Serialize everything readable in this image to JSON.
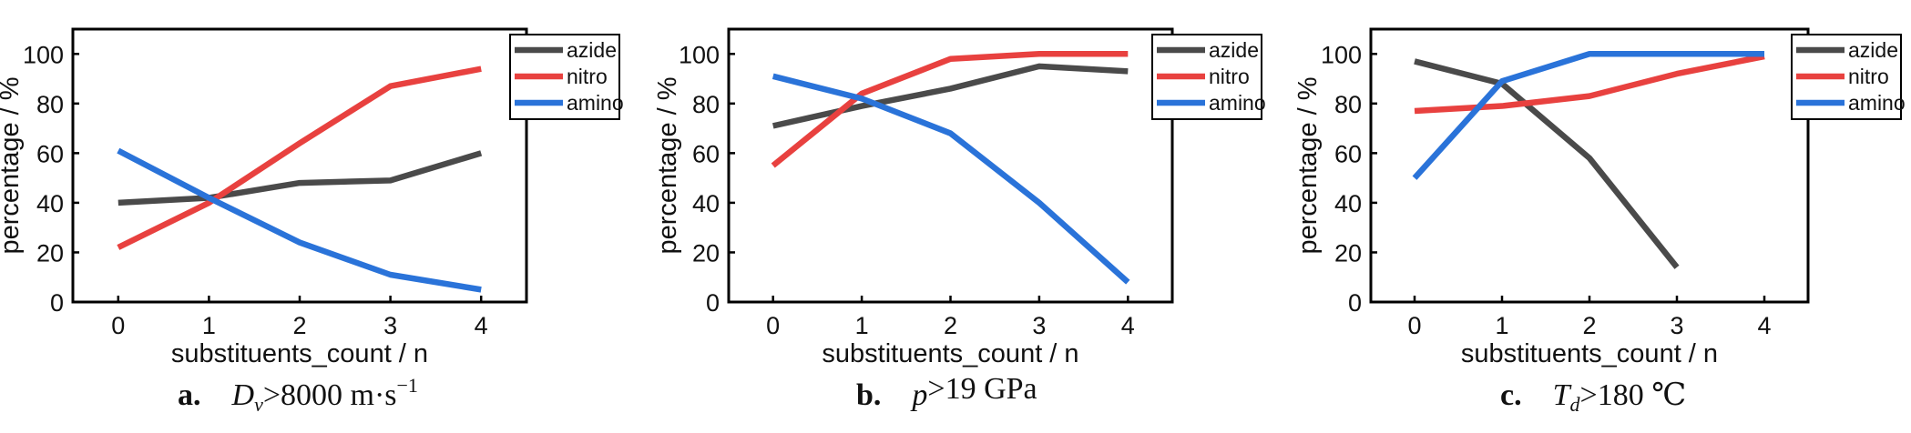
{
  "chart_data": [
    {
      "type": "line",
      "xlabel": "substituents_count / n",
      "ylabel": "percentage / %",
      "x": [
        0,
        1,
        2,
        3,
        4
      ],
      "xticks": [
        "0",
        "1",
        "2",
        "3",
        "4"
      ],
      "yticks": [
        "0",
        "20",
        "40",
        "60",
        "80",
        "100"
      ],
      "xlim": [
        -0.5,
        4.5
      ],
      "ylim": [
        0,
        110
      ],
      "legend_position": "top-right",
      "grid": false,
      "series": [
        {
          "name": "azide",
          "color": "#4a4a4a",
          "x": [
            0,
            1,
            2,
            3,
            4
          ],
          "values": [
            40,
            42,
            48,
            49,
            60
          ]
        },
        {
          "name": "nitro",
          "color": "#e8413f",
          "x": [
            0,
            1,
            2,
            3,
            4
          ],
          "values": [
            22,
            40,
            64,
            87,
            94
          ]
        },
        {
          "name": "amino",
          "color": "#2a73d9",
          "x": [
            0,
            1,
            2,
            3,
            4
          ],
          "values": [
            61,
            42,
            24,
            11,
            5
          ]
        }
      ],
      "caption": {
        "label": "a.",
        "symbol": "D",
        "subscript": "v",
        "rest": ">8000 m·s",
        "superscript": "−1"
      }
    },
    {
      "type": "line",
      "xlabel": "substituents_count / n",
      "ylabel": "percentage / %",
      "x": [
        0,
        1,
        2,
        3,
        4
      ],
      "xticks": [
        "0",
        "1",
        "2",
        "3",
        "4"
      ],
      "yticks": [
        "0",
        "20",
        "40",
        "60",
        "80",
        "100"
      ],
      "xlim": [
        -0.5,
        4.5
      ],
      "ylim": [
        0,
        110
      ],
      "legend_position": "top-right",
      "grid": false,
      "series": [
        {
          "name": "azide",
          "color": "#4a4a4a",
          "x": [
            0,
            1,
            2,
            3,
            4
          ],
          "values": [
            71,
            79,
            86,
            95,
            93
          ]
        },
        {
          "name": "nitro",
          "color": "#e8413f",
          "x": [
            0,
            1,
            2,
            3,
            4
          ],
          "values": [
            55,
            84,
            98,
            100,
            100
          ]
        },
        {
          "name": "amino",
          "color": "#2a73d9",
          "x": [
            0,
            1,
            2,
            3,
            4
          ],
          "values": [
            91,
            82,
            68,
            40,
            8
          ]
        }
      ],
      "caption": {
        "label": "b.",
        "symbol": "p",
        "subscript": "",
        "rest": ">19 GPa",
        "superscript": ""
      }
    },
    {
      "type": "line",
      "xlabel": "substituents_count / n",
      "ylabel": "percentage / %",
      "x": [
        0,
        1,
        2,
        3,
        4
      ],
      "xticks": [
        "0",
        "1",
        "2",
        "3",
        "4"
      ],
      "yticks": [
        "0",
        "20",
        "40",
        "60",
        "80",
        "100"
      ],
      "xlim": [
        -0.5,
        4.5
      ],
      "ylim": [
        0,
        110
      ],
      "legend_position": "top-right",
      "grid": false,
      "series": [
        {
          "name": "azide",
          "color": "#4a4a4a",
          "x": [
            0,
            1,
            2,
            3
          ],
          "values": [
            97,
            88,
            58,
            14
          ]
        },
        {
          "name": "nitro",
          "color": "#e8413f",
          "x": [
            0,
            1,
            2,
            3,
            4
          ],
          "values": [
            77,
            79,
            83,
            92,
            99
          ]
        },
        {
          "name": "amino",
          "color": "#2a73d9",
          "x": [
            0,
            1,
            2,
            3,
            4
          ],
          "values": [
            50,
            89,
            100,
            100,
            100
          ]
        }
      ],
      "caption": {
        "label": "c.",
        "symbol": "T",
        "subscript": "d",
        "rest": ">180 ℃",
        "superscript": ""
      }
    }
  ]
}
